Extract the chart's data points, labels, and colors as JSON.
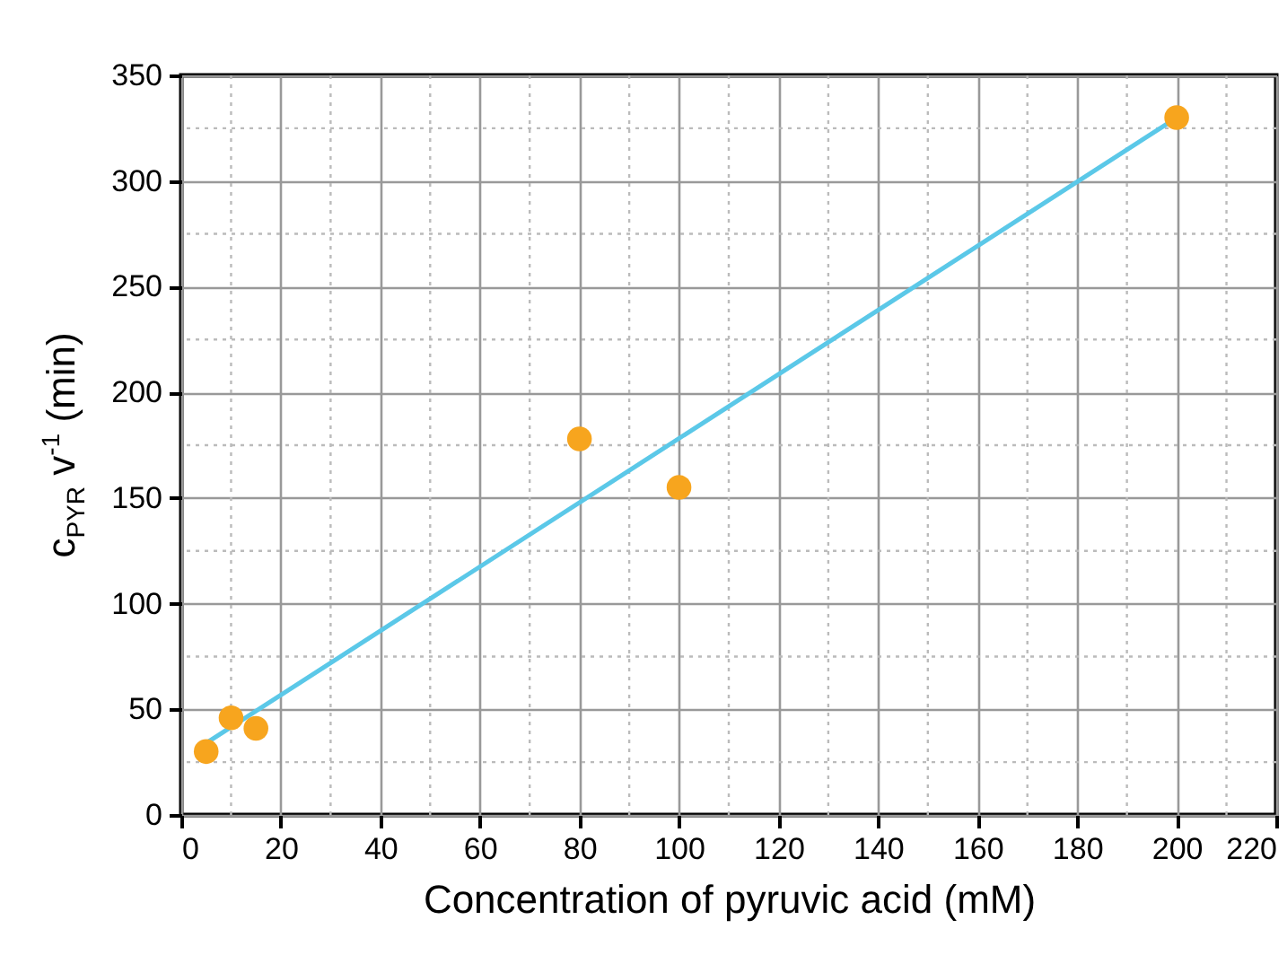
{
  "chart_data": {
    "type": "scatter",
    "xlabel": "Concentration of pyruvic acid (mM)",
    "ylabel": "c$_{PYR}$ v$^{-1}$ (min)",
    "xlim": [
      0,
      220
    ],
    "ylim": [
      0,
      350
    ],
    "xticks": [
      0,
      {
        "value": 10,
        "label": null
      },
      20,
      {
        "value": 30,
        "label": null
      },
      40,
      {
        "value": 50,
        "label": null
      },
      60,
      {
        "value": 70,
        "label": null
      },
      80,
      {
        "value": 90,
        "label": null
      },
      100,
      {
        "value": 110,
        "label": null
      },
      120,
      {
        "value": 130,
        "label": null
      },
      140,
      {
        "value": 150,
        "label": null
      },
      160,
      {
        "value": 170,
        "label": null
      },
      180,
      {
        "value": 190,
        "label": null
      },
      200,
      {
        "value": 210,
        "label": null
      },
      220
    ],
    "yticks": [
      0,
      {
        "value": 25,
        "label": null
      },
      50,
      {
        "value": 75,
        "label": null
      },
      100,
      {
        "value": 125,
        "label": null
      },
      150,
      {
        "value": 175,
        "label": null
      },
      200,
      {
        "value": 225,
        "label": null
      },
      250,
      {
        "value": 275,
        "label": null
      },
      300,
      {
        "value": 325,
        "label": null
      },
      350
    ],
    "grid": true,
    "legend": false,
    "series": [
      {
        "type": "line",
        "color": "#5bc8e8",
        "x": [
          5,
          200
        ],
        "values": [
          34,
          330
        ],
        "marker": "none",
        "line_style": "solid"
      },
      {
        "type": "scatter",
        "color": "#f7a51e",
        "x": [
          5,
          10,
          15,
          80,
          100,
          200
        ],
        "values": [
          30,
          46,
          41,
          178,
          155,
          330
        ],
        "marker": "circle"
      }
    ]
  }
}
